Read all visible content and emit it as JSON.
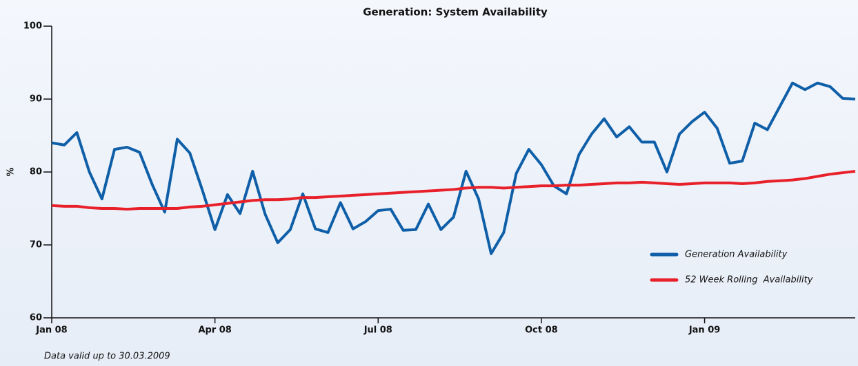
{
  "chart_data": {
    "type": "line",
    "title": "Generation: System Availability",
    "ylabel": "%",
    "footnote": "Data valid up to 30.03.2009",
    "categories": [
      "Jan 08",
      null,
      null,
      null,
      null,
      null,
      null,
      null,
      null,
      null,
      null,
      null,
      null,
      "Apr 08",
      null,
      null,
      null,
      null,
      null,
      null,
      null,
      null,
      null,
      null,
      null,
      null,
      "Jul 08",
      null,
      null,
      null,
      null,
      null,
      null,
      null,
      null,
      null,
      null,
      null,
      null,
      "Oct 08",
      null,
      null,
      null,
      null,
      null,
      null,
      null,
      null,
      null,
      null,
      null,
      null,
      "Jan 09",
      null,
      null,
      null,
      null,
      null,
      null,
      null,
      null,
      null,
      null,
      null,
      null
    ],
    "series": [
      {
        "name": "Generation Availability",
        "color": "#0f5fa8",
        "values": [
          84.0,
          83.7,
          85.4,
          80.0,
          76.3,
          83.1,
          83.4,
          82.7,
          78.3,
          74.5,
          84.5,
          82.6,
          77.5,
          72.1,
          76.9,
          74.3,
          80.1,
          74.2,
          70.3,
          72.1,
          77.0,
          72.2,
          71.7,
          75.8,
          72.2,
          73.2,
          74.7,
          74.9,
          72.0,
          72.1,
          75.6,
          72.1,
          73.8,
          80.1,
          76.3,
          68.8,
          71.7,
          79.8,
          83.1,
          81.0,
          78.1,
          77.0,
          82.4,
          85.2,
          87.3,
          84.8,
          86.2,
          84.1,
          84.1,
          80.0,
          85.2,
          86.9,
          88.2,
          86.0,
          81.2,
          81.5,
          86.7,
          85.8,
          89.0,
          92.2,
          91.3,
          92.2,
          91.7,
          90.1,
          90.0
        ]
      },
      {
        "name": "52 Week Rolling  Availability",
        "color": "#e8202a",
        "values": [
          75.4,
          75.3,
          75.3,
          75.1,
          75.0,
          75.0,
          74.9,
          75.0,
          75.0,
          75.0,
          75.0,
          75.2,
          75.3,
          75.5,
          75.7,
          75.9,
          76.1,
          76.2,
          76.2,
          76.3,
          76.5,
          76.5,
          76.6,
          76.7,
          76.8,
          76.9,
          77.0,
          77.1,
          77.2,
          77.3,
          77.4,
          77.5,
          77.6,
          77.8,
          77.9,
          77.9,
          77.8,
          77.9,
          78.0,
          78.1,
          78.1,
          78.2,
          78.2,
          78.3,
          78.4,
          78.5,
          78.5,
          78.6,
          78.5,
          78.4,
          78.3,
          78.4,
          78.5,
          78.5,
          78.5,
          78.4,
          78.5,
          78.7,
          78.8,
          78.9,
          79.1,
          79.4,
          79.7,
          79.9,
          80.1
        ]
      }
    ],
    "ylim": [
      60,
      100
    ],
    "yticks": [
      60,
      70,
      80,
      90,
      100
    ],
    "legend": "lower right"
  }
}
